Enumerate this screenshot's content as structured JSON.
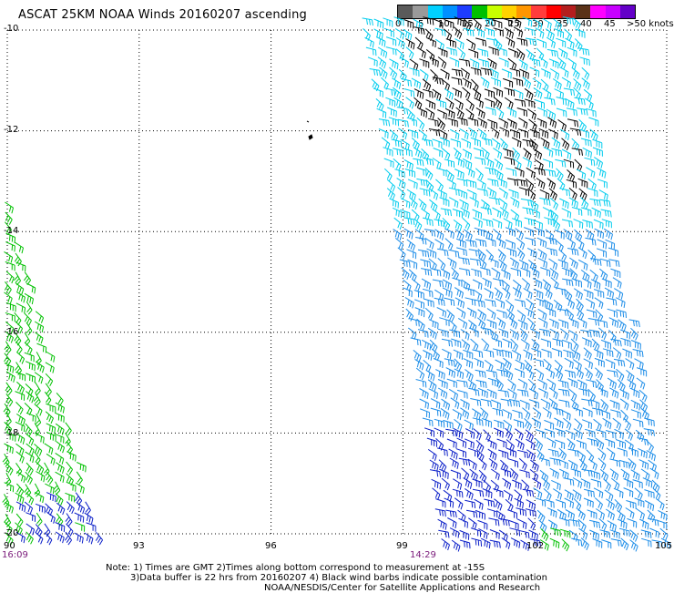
{
  "title": "ASCAT 25KM NOAA Winds 20160207 ascending",
  "colorbar": {
    "labels": [
      "0",
      "5",
      "10",
      "15",
      "20",
      "25",
      "30",
      "35",
      "40",
      "45"
    ],
    "unit_label": ">50 knots",
    "colors": [
      "#5a5a5a",
      "#9a9a9a",
      "#00d0ff",
      "#0090ff",
      "#1e3cff",
      "#00c000",
      "#c8ff00",
      "#ffd200",
      "#ff9600",
      "#ff3c3c",
      "#ff0000",
      "#b41e1e",
      "#5a3218",
      "#ff00ff",
      "#c800ff",
      "#6400c8"
    ]
  },
  "axes": {
    "lat_ticks": [
      "-10",
      "-12",
      "-14",
      "-16",
      "-18",
      "-20"
    ],
    "lon_ticks": [
      "90",
      "93",
      "96",
      "99",
      "102",
      "105"
    ],
    "times": [
      "16:09",
      "14:29"
    ]
  },
  "notes": [
    "Note: 1) Times are GMT 2)Times along bottom correspond to measurement at -15S",
    "3)Data buffer is 22 hrs from 20160207 4) Black wind barbs indicate possible contamination",
    "NOAA/NESDIS/Center for Satellite Applications and Research"
  ],
  "colors": {
    "grid": "#000000",
    "barb_black": "#000000",
    "barb_cyan": "#00ccee",
    "barb_sky": "#1a8ce8",
    "barb_blue": "#0a1ec8",
    "barb_green": "#00c000",
    "time_label": "#7a1a7a"
  }
}
